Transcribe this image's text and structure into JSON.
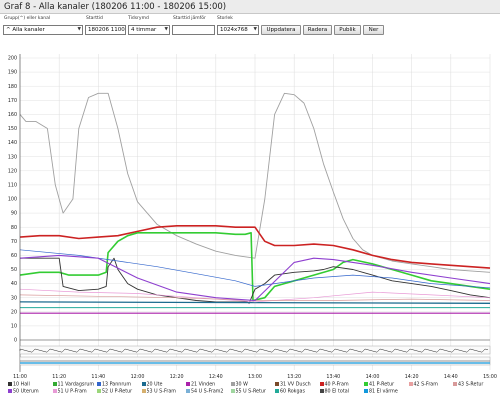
{
  "title": "Graf 8 - Alla kanaler (180206 11:00 - 180206 15:00)",
  "form": {
    "labels": {
      "group": "Grupp(^) eller kanal",
      "start": "Starttid",
      "period": "Tidsrymd",
      "compare": "Starttid jämför",
      "size": "Storlek"
    },
    "group_value": "^ Alla kanaler",
    "start_value": "180206 1100",
    "period_value": "4 timmar",
    "compare_value": "",
    "size_value": "1024x768",
    "buttons": {
      "update": "Uppdatera",
      "clear": "Radera",
      "publish": "Publik",
      "down": "Ner"
    }
  },
  "chart_data": {
    "type": "line",
    "xlim": [
      0,
      240
    ],
    "ylim": [
      0,
      200
    ],
    "x_ticks": [
      "11:00",
      "11:20",
      "11:40",
      "12:00",
      "12:20",
      "12:40",
      "13:00",
      "13:20",
      "13:40",
      "14:00",
      "14:20",
      "14:40",
      "15:00"
    ],
    "y_ticks": [
      "0",
      "10",
      "20",
      "30",
      "40",
      "50",
      "60",
      "70",
      "80",
      "90",
      "100",
      "110",
      "120",
      "130",
      "140",
      "150",
      "160",
      "170",
      "180",
      "190",
      "200"
    ],
    "grid": true,
    "series": [
      {
        "name": "30 W",
        "color": "#a0a0a0",
        "x": [
          0,
          3,
          8,
          14,
          18,
          22,
          27,
          30,
          35,
          40,
          45,
          50,
          55,
          60,
          70,
          80,
          90,
          100,
          110,
          120,
          125,
          130,
          135,
          140,
          145,
          150,
          155,
          160,
          165,
          170,
          175,
          180,
          190,
          200,
          210,
          220,
          230,
          240
        ],
        "values": [
          160,
          155,
          155,
          150,
          110,
          90,
          100,
          150,
          172,
          175,
          175,
          150,
          118,
          98,
          82,
          74,
          68,
          63,
          60,
          58,
          100,
          160,
          175,
          174,
          168,
          150,
          125,
          105,
          86,
          72,
          64,
          60,
          56,
          54,
          52,
          50,
          49,
          48
        ]
      },
      {
        "name": "40 P-Fram",
        "color": "#cc2222",
        "x": [
          0,
          10,
          20,
          30,
          40,
          50,
          60,
          70,
          80,
          100,
          110,
          120,
          125,
          130,
          140,
          150,
          160,
          170,
          180,
          190,
          200,
          210,
          220,
          230,
          240
        ],
        "values": [
          73,
          74,
          74,
          72,
          73,
          74,
          77,
          80,
          81,
          81,
          80,
          80,
          70,
          67,
          67,
          68,
          67,
          64,
          60,
          57,
          55,
          54,
          53,
          52,
          51
        ]
      },
      {
        "name": "41 P-Retur",
        "color": "#33cc33",
        "x": [
          0,
          10,
          20,
          25,
          40,
          44,
          45,
          50,
          55,
          60,
          70,
          80,
          100,
          110,
          115,
          118,
          119,
          125,
          130,
          140,
          150,
          160,
          165,
          170,
          180,
          190,
          200,
          210,
          220,
          230,
          240
        ],
        "values": [
          46,
          48,
          48,
          46,
          46,
          48,
          62,
          70,
          74,
          76,
          76,
          76,
          76,
          75,
          75,
          76,
          28,
          30,
          38,
          42,
          46,
          50,
          55,
          57,
          54,
          50,
          46,
          42,
          40,
          38,
          36
        ]
      },
      {
        "name": "10 Hall",
        "color": "#333333",
        "x": [
          0,
          10,
          20,
          22,
          30,
          40,
          44,
          45,
          48,
          50,
          55,
          60,
          70,
          80,
          90,
          100,
          110,
          116,
          117,
          120,
          125,
          130,
          140,
          150,
          155,
          160,
          170,
          175,
          180,
          190,
          200,
          210,
          220,
          230,
          240
        ],
        "values": [
          58,
          58,
          58,
          38,
          35,
          36,
          38,
          52,
          58,
          50,
          40,
          36,
          32,
          30,
          28,
          27,
          27,
          27,
          26,
          36,
          40,
          46,
          48,
          49,
          50,
          52,
          50,
          48,
          46,
          42,
          40,
          38,
          35,
          32,
          30
        ]
      },
      {
        "name": "20 Ute",
        "color": "#1b6b8f",
        "x": [
          0,
          240
        ],
        "values": [
          27,
          26
        ]
      },
      {
        "name": "21 Vinden",
        "color": "#aa22aa",
        "x": [
          0,
          240
        ],
        "values": [
          19,
          19
        ]
      },
      {
        "name": "60 Rokgas",
        "color": "#22aa99",
        "x": [
          0,
          240
        ],
        "values": [
          23,
          23
        ]
      },
      {
        "name": "13 Pannrum",
        "color": "#3366cc",
        "x": [
          0,
          30,
          50,
          70,
          90,
          110,
          120,
          130,
          150,
          170,
          190,
          210,
          240
        ],
        "values": [
          64,
          60,
          56,
          52,
          47,
          42,
          38,
          40,
          44,
          46,
          44,
          40,
          37
        ]
      },
      {
        "name": "51 U P-Fram",
        "color": "#e89ad6",
        "x": [
          0,
          30,
          60,
          90,
          120,
          150,
          180,
          210,
          240
        ],
        "values": [
          36,
          34,
          33,
          30,
          27,
          30,
          34,
          32,
          30
        ]
      },
      {
        "name": "43 S-Retur",
        "color": "#d89a9a",
        "x": [
          0,
          40,
          80,
          120,
          160,
          200,
          240
        ],
        "values": [
          32,
          31,
          30,
          28,
          28,
          29,
          28
        ]
      },
      {
        "name": "50 Uterum",
        "color": "#8e3fcf",
        "x": [
          0,
          20,
          40,
          60,
          80,
          100,
          120,
          140,
          150,
          160,
          180,
          200,
          220,
          240
        ],
        "values": [
          58,
          60,
          58,
          44,
          34,
          30,
          28,
          55,
          58,
          57,
          53,
          48,
          44,
          40
        ]
      }
    ],
    "legend": [
      {
        "label": "10 Hall",
        "color": "#333333"
      },
      {
        "label": "11 Vardagsrum",
        "color": "#33aa33"
      },
      {
        "label": "13 Pannrum",
        "color": "#3366cc"
      },
      {
        "label": "20 Ute",
        "color": "#1b6b8f"
      },
      {
        "label": "21 Vinden",
        "color": "#aa22aa"
      },
      {
        "label": "30 W",
        "color": "#a0a0a0"
      },
      {
        "label": "31 VV Dusch",
        "color": "#7a4a2a"
      },
      {
        "label": "40 P-Fram",
        "color": "#cc2222"
      },
      {
        "label": "41 P-Retur",
        "color": "#33cc33"
      },
      {
        "label": "42 S-Fram",
        "color": "#e8a0a0"
      },
      {
        "label": "43 S-Retur",
        "color": "#d89a9a"
      },
      {
        "label": "50 Uterum",
        "color": "#8e3fcf"
      },
      {
        "label": "51 U P-Fram",
        "color": "#e89ad6"
      },
      {
        "label": "52 U P-Retur",
        "color": "#9bd67a"
      },
      {
        "label": "53 U S-Fram",
        "color": "#d6b06e"
      },
      {
        "label": "54 U S-Fram2",
        "color": "#7ab0d6"
      },
      {
        "label": "55 U S-Retur",
        "color": "#a0d6a0"
      },
      {
        "label": "60 Rokgas",
        "color": "#22aa99"
      },
      {
        "label": "80 El total",
        "color": "#444444"
      },
      {
        "label": "81 El värme",
        "color": "#1199dd"
      }
    ]
  }
}
